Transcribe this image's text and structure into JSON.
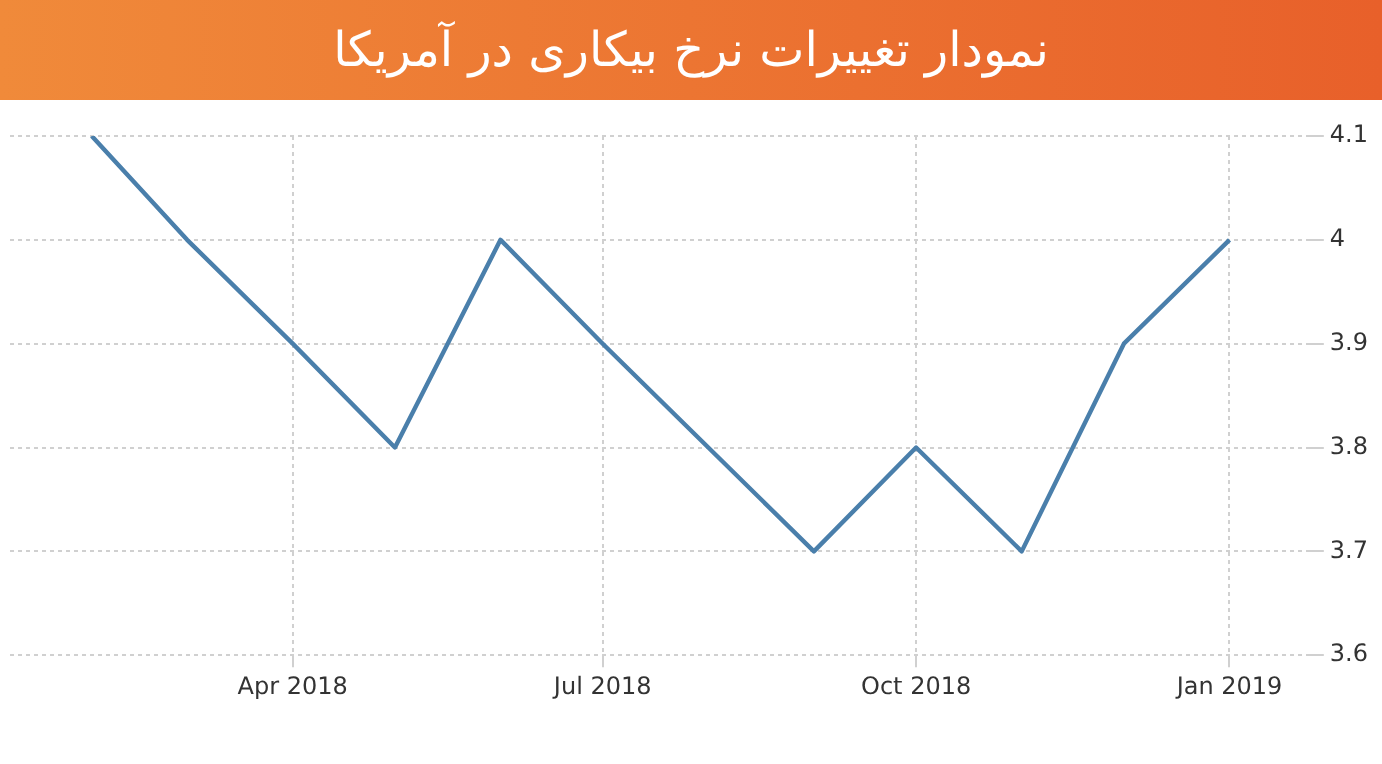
{
  "chart_data": {
    "type": "line",
    "title": "نمودار تغییرات نرخ بیکاری در آمریکا",
    "x": [
      "2018-02",
      "2018-03",
      "2018-04",
      "2018-05",
      "2018-06",
      "2018-07",
      "2018-08",
      "2018-09",
      "2018-10",
      "2018-11",
      "2018-12",
      "2019-01"
    ],
    "series": [
      {
        "color": "#4a7fab",
        "values": [
          4.1,
          4.0,
          3.9,
          3.8,
          4.0,
          3.9,
          3.8,
          3.7,
          3.8,
          3.7,
          3.9,
          4.0
        ]
      }
    ],
    "xlim": [
      "2018-01-08",
      "2019-01-24"
    ],
    "xticks": [
      {
        "value": "2018-04",
        "label": "Apr 2018"
      },
      {
        "value": "2018-07",
        "label": "Jul 2018"
      },
      {
        "value": "2018-10",
        "label": "Oct 2018"
      },
      {
        "value": "2019-01",
        "label": "Jan 2019"
      }
    ],
    "ylim": [
      3.6,
      4.1
    ],
    "yticks": [
      3.6,
      3.7,
      3.8,
      3.9,
      4,
      4.1
    ],
    "grid": true,
    "legend": false,
    "marker": "none",
    "line_style": "solid"
  }
}
